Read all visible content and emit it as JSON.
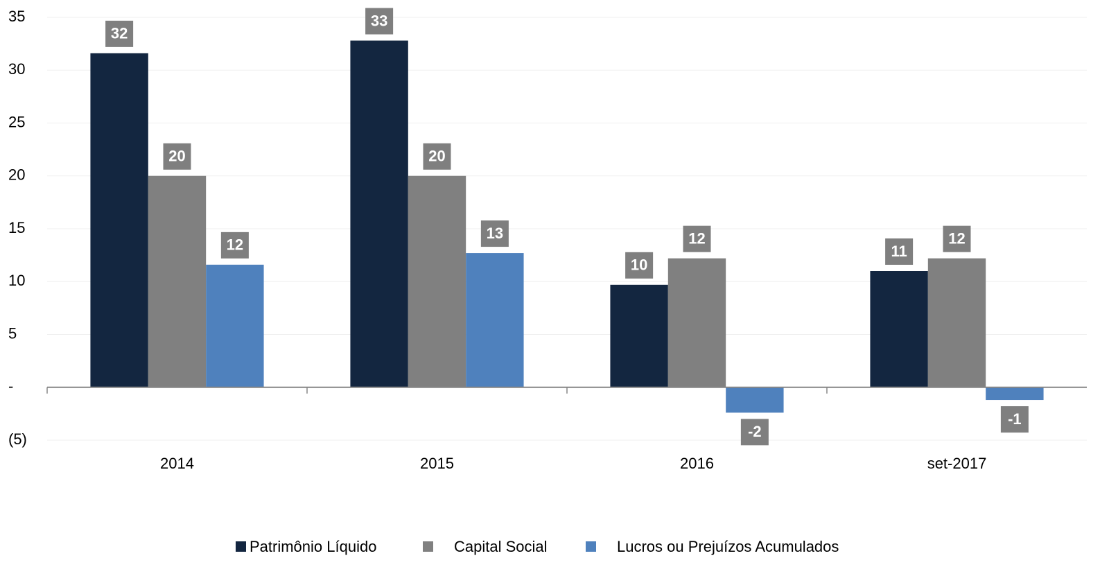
{
  "chart_data": {
    "type": "bar",
    "categories": [
      "2014",
      "2015",
      "2016",
      "set-2017"
    ],
    "series": [
      {
        "name": "Patrimônio Líquido",
        "color": "#132640",
        "values": [
          31.6,
          32.8,
          9.7,
          11.0
        ],
        "value_labels": [
          "32",
          "33",
          "10",
          "11"
        ]
      },
      {
        "name": "Capital Social",
        "color": "#808080",
        "values": [
          20,
          20,
          12.2,
          12.2
        ],
        "value_labels": [
          "20",
          "20",
          "12",
          "12"
        ]
      },
      {
        "name": "Lucros ou Prejuízos Acumulados",
        "color": "#4f81bd",
        "values": [
          11.6,
          12.7,
          -2.4,
          -1.2
        ],
        "value_labels": [
          "12",
          "13",
          "-2",
          "-1"
        ]
      }
    ],
    "ylim": [
      -5,
      35
    ],
    "yticks": [
      {
        "value": -5,
        "label": "(5)"
      },
      {
        "value": 0,
        "label": "-"
      },
      5,
      10,
      15,
      20,
      25,
      30,
      35
    ],
    "grid": true,
    "legend": "bottom"
  }
}
